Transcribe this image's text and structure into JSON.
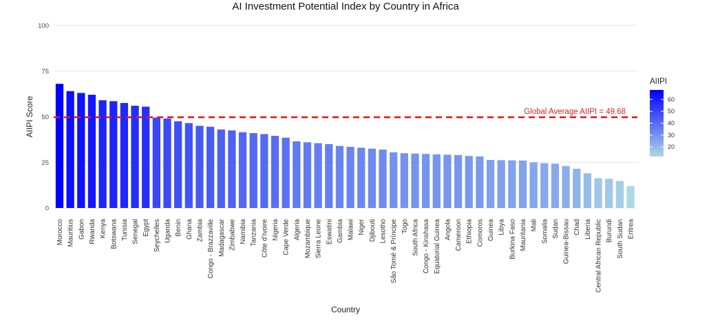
{
  "chart_data": {
    "type": "bar",
    "title": "AI Investment Potential Index by Country in Africa",
    "xlabel": "Country",
    "ylabel": "AIIPI Score",
    "ylim": [
      0,
      100
    ],
    "yticks": [
      0,
      25,
      50,
      75,
      100
    ],
    "grid": true,
    "categories": [
      "Morocco",
      "Mauritius",
      "Gabon",
      "Rwanda",
      "Kenya",
      "Botswana",
      "Tunisia",
      "Senegal",
      "Egypt",
      "Seychelles",
      "Uganda",
      "Benin",
      "Ghana",
      "Zambia",
      "Congo - Brazzaville",
      "Madagascar",
      "Zimbabwe",
      "Namibia",
      "Tanzania",
      "Côte d’Ivoire",
      "Nigeria",
      "Cape Verde",
      "Algeria",
      "Mozambique",
      "Sierra Leone",
      "Eswatini",
      "Gambia",
      "Malawi",
      "Niger",
      "Djibouti",
      "Lesotho",
      "São Tomé & Príncipe",
      "Togo",
      "South Africa",
      "Congo - Kinshasa",
      "Equatorial Guinea",
      "Angola",
      "Cameroon",
      "Ethiopia",
      "Comoros",
      "Guinea",
      "Libya",
      "Burkina Faso",
      "Mauritania",
      "Mali",
      "Somalia",
      "Sudan",
      "Guinea-Bissau",
      "Chad",
      "Liberia",
      "Central African Republic",
      "Burundi",
      "South Sudan",
      "Eritrea"
    ],
    "series": [
      {
        "values": [
          68.0,
          64.0,
          63.0,
          62.0,
          59.0,
          58.5,
          57.5,
          56.0,
          55.5,
          49.5,
          49.0,
          47.5,
          46.5,
          45.0,
          44.5,
          43.0,
          42.5,
          41.5,
          41.0,
          40.5,
          39.5,
          38.5,
          36.5,
          36.0,
          35.5,
          35.0,
          34.0,
          33.5,
          33.0,
          32.5,
          32.0,
          30.5,
          30.0,
          29.8,
          29.6,
          29.4,
          29.2,
          29.0,
          28.5,
          28.2,
          26.3,
          26.2,
          26.1,
          26.0,
          25.0,
          24.5,
          24.3,
          23.0,
          21.5,
          19.0,
          16.3,
          16.0,
          14.8,
          12.0
        ]
      }
    ],
    "reference_line": {
      "value": 49.68,
      "label": "Global Average AIIPI = 49.68",
      "color": "#e01b1b"
    },
    "legend": {
      "title": "AIIPI",
      "placement": "right",
      "ticks": [
        20,
        30,
        40,
        50,
        60
      ],
      "range": [
        12.0,
        68.0
      ],
      "color_low": "#add8e6",
      "color_high": "#0000ff"
    }
  }
}
